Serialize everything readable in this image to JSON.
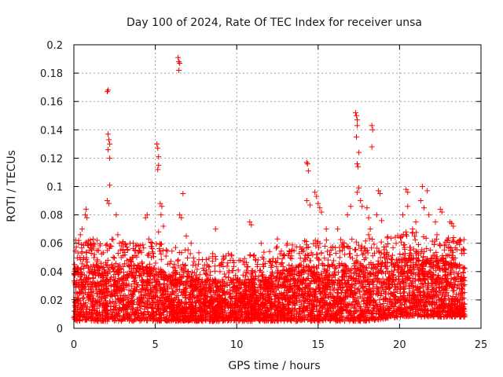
{
  "chart_data": {
    "type": "scatter",
    "title": "Day 100 of 2024, Rate Of TEC Index for receiver unsa",
    "xlabel": "GPS time / hours",
    "ylabel": "ROTI / TECUs",
    "xlim": [
      0,
      25
    ],
    "ylim": [
      0,
      0.2
    ],
    "x_ticks": [
      0,
      5,
      10,
      15,
      20,
      25
    ],
    "x_tick_labels": [
      "0",
      "5",
      "10",
      "15",
      "20",
      "25"
    ],
    "y_ticks": [
      0,
      0.02,
      0.04,
      0.06,
      0.08,
      0.1,
      0.12,
      0.14,
      0.16,
      0.18,
      0.2
    ],
    "y_tick_labels": [
      "0",
      "0.02",
      "0.04",
      "0.06",
      "0.08",
      "0.1",
      "0.12",
      "0.14",
      "0.16",
      "0.18",
      "0.2"
    ],
    "grid": true,
    "marker": "+",
    "series": [
      {
        "name": "ROTI",
        "color": "#ff0000",
        "data_extent": {
          "x": [
            0,
            24
          ],
          "y": [
            0.003,
            0.191
          ]
        },
        "baseline_band": [
          {
            "x": 0,
            "low": 0.005,
            "high": 0.045
          },
          {
            "x": 4,
            "low": 0.005,
            "high": 0.045
          },
          {
            "x": 8,
            "low": 0.005,
            "high": 0.035
          },
          {
            "x": 11,
            "low": 0.005,
            "high": 0.035
          },
          {
            "x": 14,
            "low": 0.005,
            "high": 0.045
          },
          {
            "x": 18,
            "low": 0.005,
            "high": 0.045
          },
          {
            "x": 20,
            "low": 0.008,
            "high": 0.05
          },
          {
            "x": 22,
            "low": 0.008,
            "high": 0.05
          },
          {
            "x": 24,
            "low": 0.008,
            "high": 0.045
          }
        ],
        "points": [
          {
            "x": 0.3,
            "y": 0.062
          },
          {
            "x": 0.4,
            "y": 0.066
          },
          {
            "x": 0.5,
            "y": 0.07
          },
          {
            "x": 0.7,
            "y": 0.08
          },
          {
            "x": 0.75,
            "y": 0.084
          },
          {
            "x": 0.8,
            "y": 0.078
          },
          {
            "x": 1.2,
            "y": 0.058
          },
          {
            "x": 1.5,
            "y": 0.055
          },
          {
            "x": 2.05,
            "y": 0.167
          },
          {
            "x": 2.1,
            "y": 0.168
          },
          {
            "x": 2.1,
            "y": 0.137
          },
          {
            "x": 2.15,
            "y": 0.133
          },
          {
            "x": 2.2,
            "y": 0.13
          },
          {
            "x": 2.1,
            "y": 0.126
          },
          {
            "x": 2.2,
            "y": 0.12
          },
          {
            "x": 2.2,
            "y": 0.101
          },
          {
            "x": 2.05,
            "y": 0.09
          },
          {
            "x": 2.15,
            "y": 0.088
          },
          {
            "x": 2.6,
            "y": 0.08
          },
          {
            "x": 2.7,
            "y": 0.066
          },
          {
            "x": 2.8,
            "y": 0.06
          },
          {
            "x": 3.3,
            "y": 0.055
          },
          {
            "x": 3.8,
            "y": 0.058
          },
          {
            "x": 4.4,
            "y": 0.078
          },
          {
            "x": 4.5,
            "y": 0.08
          },
          {
            "x": 4.6,
            "y": 0.063
          },
          {
            "x": 5.1,
            "y": 0.13
          },
          {
            "x": 5.15,
            "y": 0.127
          },
          {
            "x": 5.2,
            "y": 0.121
          },
          {
            "x": 5.2,
            "y": 0.115
          },
          {
            "x": 5.15,
            "y": 0.112
          },
          {
            "x": 5.3,
            "y": 0.088
          },
          {
            "x": 5.4,
            "y": 0.086
          },
          {
            "x": 5.35,
            "y": 0.08
          },
          {
            "x": 5.5,
            "y": 0.072
          },
          {
            "x": 5.2,
            "y": 0.068
          },
          {
            "x": 6.4,
            "y": 0.191
          },
          {
            "x": 6.45,
            "y": 0.188
          },
          {
            "x": 6.5,
            "y": 0.187
          },
          {
            "x": 6.45,
            "y": 0.182
          },
          {
            "x": 6.5,
            "y": 0.08
          },
          {
            "x": 6.6,
            "y": 0.078
          },
          {
            "x": 6.7,
            "y": 0.095
          },
          {
            "x": 6.9,
            "y": 0.065
          },
          {
            "x": 7.2,
            "y": 0.06
          },
          {
            "x": 8.7,
            "y": 0.07
          },
          {
            "x": 10.8,
            "y": 0.075
          },
          {
            "x": 10.9,
            "y": 0.073
          },
          {
            "x": 11.5,
            "y": 0.06
          },
          {
            "x": 12.5,
            "y": 0.063
          },
          {
            "x": 14.3,
            "y": 0.117
          },
          {
            "x": 14.35,
            "y": 0.116
          },
          {
            "x": 14.4,
            "y": 0.111
          },
          {
            "x": 14.3,
            "y": 0.09
          },
          {
            "x": 14.5,
            "y": 0.087
          },
          {
            "x": 14.8,
            "y": 0.096
          },
          {
            "x": 14.9,
            "y": 0.093
          },
          {
            "x": 15.0,
            "y": 0.088
          },
          {
            "x": 15.1,
            "y": 0.085
          },
          {
            "x": 15.2,
            "y": 0.082
          },
          {
            "x": 15.5,
            "y": 0.07
          },
          {
            "x": 16.2,
            "y": 0.07
          },
          {
            "x": 16.8,
            "y": 0.08
          },
          {
            "x": 17.0,
            "y": 0.086
          },
          {
            "x": 17.3,
            "y": 0.152
          },
          {
            "x": 17.35,
            "y": 0.15
          },
          {
            "x": 17.4,
            "y": 0.147
          },
          {
            "x": 17.4,
            "y": 0.143
          },
          {
            "x": 17.35,
            "y": 0.135
          },
          {
            "x": 17.4,
            "y": 0.116
          },
          {
            "x": 17.45,
            "y": 0.114
          },
          {
            "x": 17.5,
            "y": 0.124
          },
          {
            "x": 17.5,
            "y": 0.099
          },
          {
            "x": 17.4,
            "y": 0.096
          },
          {
            "x": 17.6,
            "y": 0.09
          },
          {
            "x": 17.7,
            "y": 0.086
          },
          {
            "x": 18.0,
            "y": 0.085
          },
          {
            "x": 18.1,
            "y": 0.078
          },
          {
            "x": 18.2,
            "y": 0.07
          },
          {
            "x": 18.1,
            "y": 0.066
          },
          {
            "x": 18.3,
            "y": 0.143
          },
          {
            "x": 18.35,
            "y": 0.14
          },
          {
            "x": 18.3,
            "y": 0.128
          },
          {
            "x": 18.7,
            "y": 0.097
          },
          {
            "x": 18.8,
            "y": 0.095
          },
          {
            "x": 18.6,
            "y": 0.08
          },
          {
            "x": 18.9,
            "y": 0.076
          },
          {
            "x": 20.2,
            "y": 0.08
          },
          {
            "x": 20.4,
            "y": 0.098
          },
          {
            "x": 20.5,
            "y": 0.096
          },
          {
            "x": 20.5,
            "y": 0.086
          },
          {
            "x": 20.8,
            "y": 0.07
          },
          {
            "x": 21.0,
            "y": 0.075
          },
          {
            "x": 21.3,
            "y": 0.09
          },
          {
            "x": 21.4,
            "y": 0.1
          },
          {
            "x": 21.5,
            "y": 0.085
          },
          {
            "x": 21.7,
            "y": 0.097
          },
          {
            "x": 21.8,
            "y": 0.08
          },
          {
            "x": 22.2,
            "y": 0.075
          },
          {
            "x": 22.5,
            "y": 0.084
          },
          {
            "x": 22.6,
            "y": 0.082
          },
          {
            "x": 22.3,
            "y": 0.066
          },
          {
            "x": 23.1,
            "y": 0.075
          },
          {
            "x": 23.2,
            "y": 0.074
          },
          {
            "x": 23.3,
            "y": 0.072
          },
          {
            "x": 23.5,
            "y": 0.06
          },
          {
            "x": 23.8,
            "y": 0.055
          }
        ]
      }
    ]
  }
}
